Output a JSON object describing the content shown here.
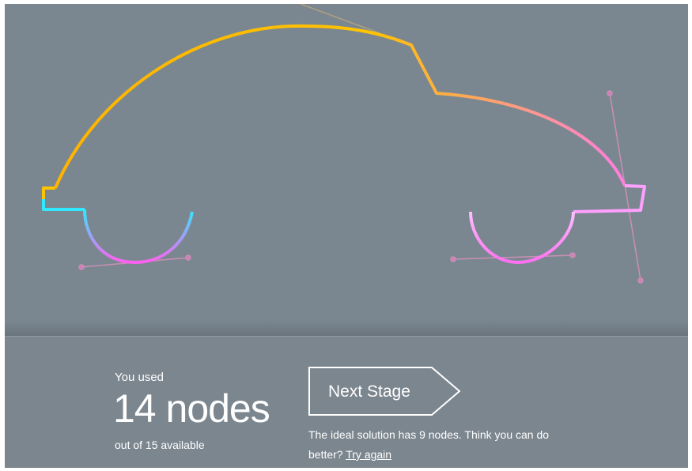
{
  "result": {
    "intro": "You used",
    "count": "14 nodes",
    "available": "out of 15 available"
  },
  "next_button": {
    "label": "Next Stage"
  },
  "message": {
    "text": "The ideal solution has 9 nodes. Think you can do better?",
    "link": "Try again"
  }
}
